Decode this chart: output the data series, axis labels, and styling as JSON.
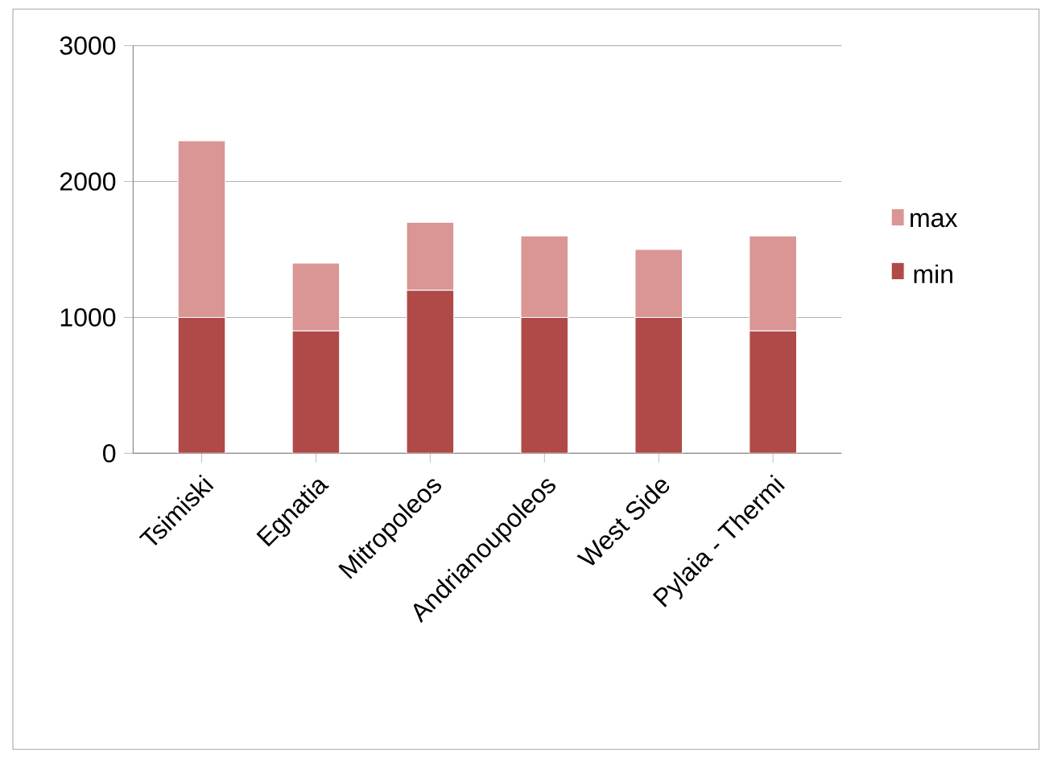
{
  "chart_data": {
    "type": "bar",
    "stacked": true,
    "categories": [
      "Tsimiski",
      "Egnatia",
      "Mitropoleos",
      "Andrianoupoleos",
      "West Side",
      "Pylaia - Thermi"
    ],
    "series": [
      {
        "name": "min",
        "color": "#b04a48",
        "values": [
          1000,
          900,
          1200,
          1000,
          1000,
          900
        ]
      },
      {
        "name": "max",
        "color": "#d99694",
        "values": [
          1300,
          500,
          500,
          600,
          500,
          700
        ]
      }
    ],
    "ylim": [
      0,
      3000
    ],
    "yticks": [
      0,
      1000,
      2000,
      3000
    ],
    "grid": "y",
    "legend": "right"
  }
}
